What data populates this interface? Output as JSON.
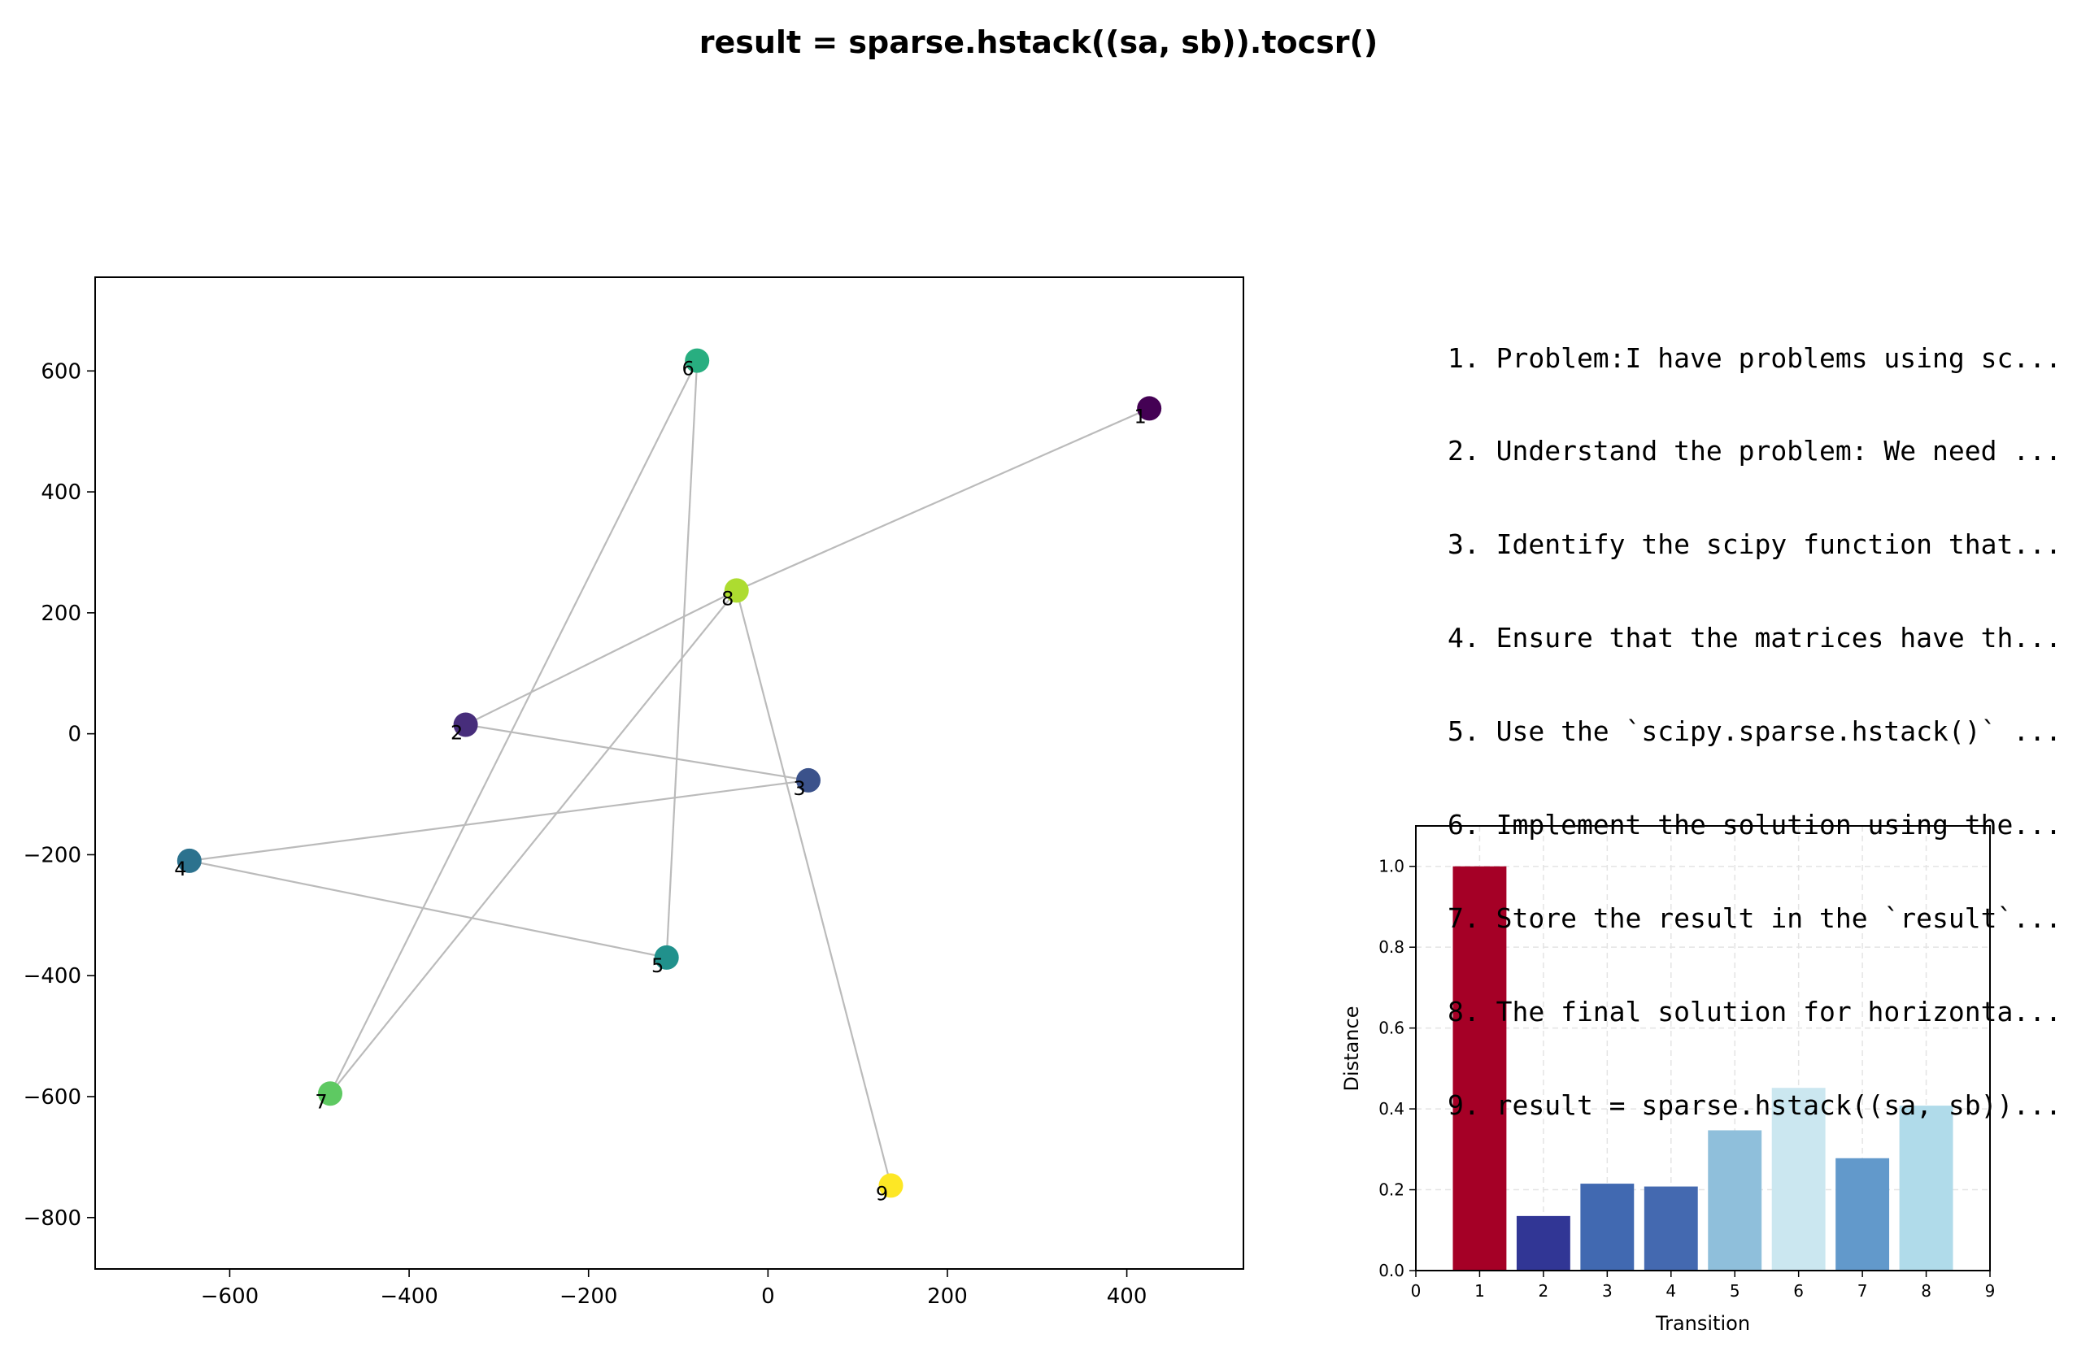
{
  "title": "result = sparse.hstack((sa, sb)).tocsr()",
  "steps": [
    "1. Problem:I have problems using sc...",
    "2. Understand the problem: We need ...",
    "3. Identify the scipy function that...",
    "4. Ensure that the matrices have th...",
    "5. Use the `scipy.sparse.hstack()` ...",
    "6. Implement the solution using the...",
    "7. Store the result in the `result`...",
    "8. The final solution for horizonta...",
    "9. result = sparse.hstack((sa, sb))..."
  ],
  "chart_data": [
    {
      "type": "scatter",
      "xlim": [
        -750,
        530
      ],
      "ylim": [
        -885,
        755
      ],
      "xticks": [
        -600,
        -400,
        -200,
        0,
        200,
        400
      ],
      "xtick_labels": [
        "−600",
        "−400",
        "−200",
        "0",
        "200",
        "400"
      ],
      "yticks": [
        600,
        400,
        200,
        0,
        -200,
        -400,
        -600,
        -800
      ],
      "ytick_labels": [
        "600",
        "400",
        "200",
        "0",
        "−200",
        "−400",
        "−600",
        "−800"
      ],
      "grid": false,
      "points": [
        {
          "label": "1",
          "x": 425,
          "y": 538,
          "color": "#440154"
        },
        {
          "label": "2",
          "x": -337,
          "y": 15,
          "color": "#472d7b"
        },
        {
          "label": "3",
          "x": 45,
          "y": -77,
          "color": "#3b528b"
        },
        {
          "label": "4",
          "x": -645,
          "y": -210,
          "color": "#2c728e"
        },
        {
          "label": "5",
          "x": -113,
          "y": -370,
          "color": "#21918c"
        },
        {
          "label": "6",
          "x": -79,
          "y": 617,
          "color": "#28ae80"
        },
        {
          "label": "7",
          "x": -488,
          "y": -595,
          "color": "#5ec962"
        },
        {
          "label": "8",
          "x": -35,
          "y": 237,
          "color": "#addc30"
        },
        {
          "label": "9",
          "x": 137,
          "y": -747,
          "color": "#fde725"
        }
      ],
      "path_order": [
        "1",
        "8",
        "2",
        "3",
        "4",
        "5",
        "6",
        "7",
        "8",
        "9"
      ],
      "line_color": "#bbbbbb"
    },
    {
      "type": "bar",
      "xlabel": "Transition",
      "ylabel": "Distance",
      "xlim": [
        0,
        9
      ],
      "ylim": [
        0,
        1.1
      ],
      "xticks": [
        "0",
        "1",
        "2",
        "3",
        "4",
        "5",
        "6",
        "7",
        "8",
        "9"
      ],
      "yticks": [
        "0.0",
        "0.2",
        "0.4",
        "0.6",
        "0.8",
        "1.0"
      ],
      "grid": true,
      "categories": [
        "1",
        "2",
        "3",
        "4",
        "5",
        "6",
        "7",
        "8"
      ],
      "values": [
        1.0,
        0.135,
        0.215,
        0.208,
        0.347,
        0.452,
        0.278,
        0.408
      ],
      "colors": [
        "#a50026",
        "#313695",
        "#4169b1",
        "#4469b0",
        "#8fbfdb",
        "#cbe7f0",
        "#6299cb",
        "#b0dbea"
      ]
    }
  ]
}
